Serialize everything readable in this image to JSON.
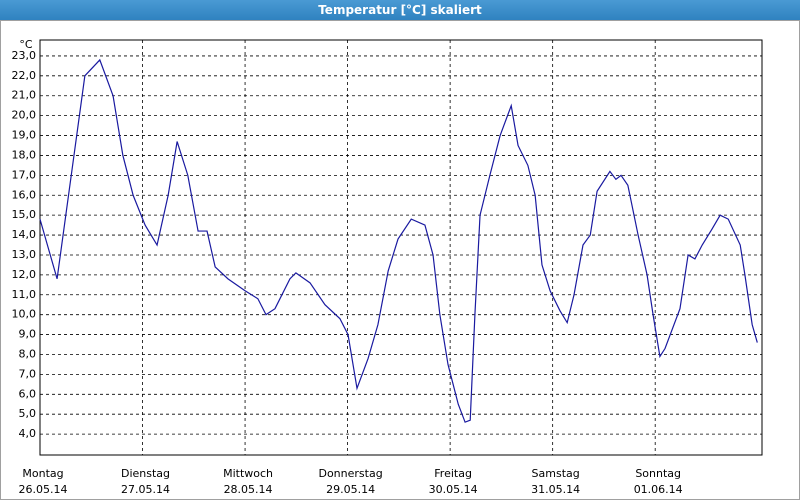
{
  "chart_data": {
    "type": "line",
    "title": "Temperatur [°C] skaliert",
    "y_unit": "°C",
    "days": [
      {
        "weekday": "Montag",
        "date": "26.05.14"
      },
      {
        "weekday": "Dienstag",
        "date": "27.05.14"
      },
      {
        "weekday": "Mittwoch",
        "date": "28.05.14"
      },
      {
        "weekday": "Donnerstag",
        "date": "29.05.14"
      },
      {
        "weekday": "Freitag",
        "date": "30.05.14"
      },
      {
        "weekday": "Samstag",
        "date": "31.05.14"
      },
      {
        "weekday": "Sonntag",
        "date": "01.06.14"
      }
    ],
    "xticks": [
      0,
      24,
      48,
      72,
      96,
      120,
      144
    ],
    "xlim": [
      0,
      169
    ],
    "ylim": [
      2.95,
      23.8
    ],
    "yticks": [
      {
        "value": 4,
        "label": "4,0"
      },
      {
        "value": 5,
        "label": "5,0"
      },
      {
        "value": 6,
        "label": "6,0"
      },
      {
        "value": 7,
        "label": "7,0"
      },
      {
        "value": 8,
        "label": "8,0"
      },
      {
        "value": 9,
        "label": "9,0"
      },
      {
        "value": 10,
        "label": "10,0"
      },
      {
        "value": 11,
        "label": "11,0"
      },
      {
        "value": 12,
        "label": "12,0"
      },
      {
        "value": 13,
        "label": "13,0"
      },
      {
        "value": 14,
        "label": "14,0"
      },
      {
        "value": 15,
        "label": "15,0"
      },
      {
        "value": 16,
        "label": "16,0"
      },
      {
        "value": 17,
        "label": "17,0"
      },
      {
        "value": 18,
        "label": "18,0"
      },
      {
        "value": 19,
        "label": "19,0"
      },
      {
        "value": 20,
        "label": "20,0"
      },
      {
        "value": 21,
        "label": "21,0"
      },
      {
        "value": 22,
        "label": "22,0"
      },
      {
        "value": 23,
        "label": "23,0"
      }
    ],
    "grid": true,
    "x": [
      0,
      4.0,
      10.5,
      14.0,
      17.1,
      19.4,
      21.8,
      24.6,
      27.4,
      30.0,
      32.1,
      34.6,
      37.0,
      39.1,
      41.0,
      44.0,
      48.0,
      51.0,
      52.9,
      55.0,
      58.5,
      59.9,
      63.2,
      66.7,
      70.2,
      72.1,
      74.2,
      76.8,
      79.1,
      81.5,
      83.8,
      86.9,
      90.1,
      92.0,
      93.6,
      95.5,
      97.9,
      99.5,
      100.7,
      101.8,
      103.0,
      105.3,
      107.7,
      110.3,
      111.9,
      114.2,
      115.9,
      117.5,
      119.4,
      121.7,
      123.4,
      125.0,
      127.1,
      128.8,
      130.4,
      133.4,
      134.8,
      136.0,
      137.6,
      140.0,
      142.1,
      143.5,
      145.1,
      146.3,
      149.8,
      151.7,
      153.3,
      155.0,
      157.3,
      159.2,
      161.1,
      163.9,
      165.0,
      166.7,
      167.9
    ],
    "series": [
      {
        "color": "#1a1aa0",
        "values": [
          14.8,
          11.8,
          22.0,
          22.8,
          21.0,
          18.0,
          16.0,
          14.5,
          13.5,
          16.0,
          18.7,
          17.0,
          14.2,
          14.2,
          12.4,
          11.8,
          11.2,
          10.8,
          10.0,
          10.3,
          11.8,
          12.1,
          11.6,
          10.5,
          9.8,
          9.0,
          6.3,
          7.8,
          9.5,
          12.2,
          13.8,
          14.8,
          14.5,
          13.0,
          10.0,
          7.5,
          5.5,
          4.6,
          4.7,
          10.0,
          15.0,
          17.0,
          19.0,
          20.5,
          18.5,
          17.5,
          16.0,
          12.5,
          11.2,
          10.2,
          9.6,
          11.0,
          13.5,
          14.0,
          16.2,
          17.2,
          16.8,
          17.0,
          16.5,
          14.0,
          12.0,
          10.0,
          7.9,
          8.3,
          10.3,
          13.0,
          12.8,
          13.5,
          14.3,
          15.0,
          14.8,
          13.5,
          12.0,
          9.5,
          8.6
        ]
      }
    ]
  }
}
